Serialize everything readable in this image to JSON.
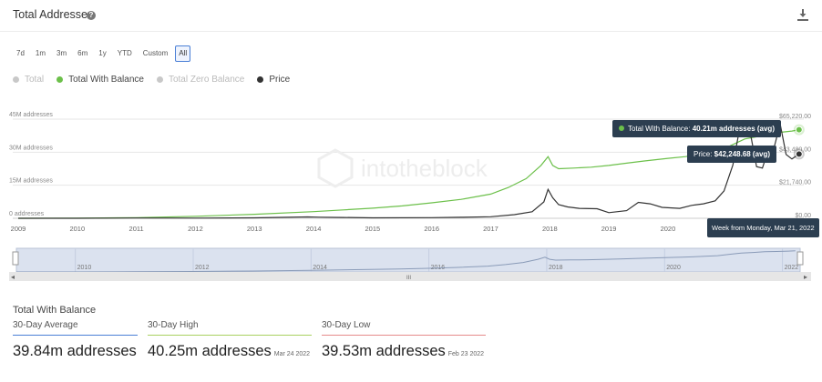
{
  "header": {
    "title": "Total Addresses",
    "help_icon": "?"
  },
  "ranges": [
    "7d",
    "1m",
    "3m",
    "6m",
    "1y",
    "YTD",
    "Custom",
    "All"
  ],
  "active_range": "All",
  "legend": [
    {
      "label": "Total",
      "color": "#c8c8c8",
      "state": "off"
    },
    {
      "label": "Total With Balance",
      "color": "#6cc04a",
      "state": "on"
    },
    {
      "label": "Total Zero Balance",
      "color": "#c8c8c8",
      "state": "off"
    },
    {
      "label": "Price",
      "color": "#333333",
      "state": "on"
    }
  ],
  "watermark": "intotheblock",
  "tooltips": {
    "balance_prefix": "Total With Balance: ",
    "balance_value": "40.21m addresses (avg)",
    "price_prefix": "Price: ",
    "price_value": "$42,248.68 (avg)",
    "week": "Week from Monday, Mar 21, 2022"
  },
  "chart_data": {
    "type": "line",
    "left_ticks": [
      "45M addresses",
      "30M addresses",
      "15M addresses",
      "0 addresses"
    ],
    "right_ticks": [
      "$65,220.00",
      "$43,480.00",
      "$21,740.00",
      "$0.00"
    ],
    "x_ticks": [
      "2009",
      "2010",
      "2011",
      "2012",
      "2013",
      "2014",
      "2015",
      "2016",
      "2017",
      "2018",
      "2019",
      "2020",
      "2021"
    ],
    "ylim_left": [
      0,
      45000000
    ],
    "ylim_right": [
      0,
      65220
    ],
    "xlim": [
      2009.0,
      2022.3
    ],
    "series": [
      {
        "name": "Total With Balance",
        "axis": "left",
        "color": "#6cc04a",
        "x": [
          2009.0,
          2010.0,
          2011.0,
          2012.0,
          2013.0,
          2014.0,
          2014.5,
          2015.0,
          2015.5,
          2016.0,
          2016.5,
          2017.0,
          2017.3,
          2017.6,
          2017.85,
          2017.97,
          2018.05,
          2018.15,
          2018.4,
          2018.7,
          2019.0,
          2019.3,
          2019.6,
          2020.0,
          2020.3,
          2020.6,
          2020.9,
          2021.1,
          2021.3,
          2021.5,
          2021.7,
          2021.9,
          2022.1,
          2022.22
        ],
        "y": [
          0,
          80000,
          300000,
          900000,
          1800000,
          3000000,
          3800000,
          4600000,
          5600000,
          7000000,
          8600000,
          11000000,
          14000000,
          18000000,
          24000000,
          28000000,
          24000000,
          22500000,
          22800000,
          23200000,
          24000000,
          25000000,
          26000000,
          27200000,
          28000000,
          29500000,
          31000000,
          33500000,
          36000000,
          37000000,
          38500000,
          39000000,
          39600000,
          40210000
        ]
      },
      {
        "name": "Price",
        "axis": "right",
        "color": "#333333",
        "x": [
          2009.0,
          2010.0,
          2011.0,
          2012.0,
          2013.0,
          2013.9,
          2014.1,
          2014.5,
          2015.0,
          2016.0,
          2016.5,
          2017.0,
          2017.4,
          2017.7,
          2017.9,
          2017.97,
          2018.05,
          2018.15,
          2018.3,
          2018.5,
          2018.8,
          2019.0,
          2019.3,
          2019.5,
          2019.7,
          2019.9,
          2020.2,
          2020.4,
          2020.6,
          2020.8,
          2020.95,
          2021.1,
          2021.2,
          2021.3,
          2021.4,
          2021.5,
          2021.6,
          2021.7,
          2021.8,
          2021.9,
          2022.0,
          2022.1,
          2022.22
        ],
        "y": [
          0,
          10,
          200,
          100,
          300,
          900,
          700,
          550,
          300,
          400,
          650,
          1000,
          2400,
          4300,
          10800,
          19000,
          13500,
          9000,
          7500,
          6500,
          6300,
          3700,
          5000,
          10500,
          9500,
          7200,
          6500,
          8500,
          9500,
          11500,
          18000,
          35000,
          56000,
          60000,
          55000,
          34000,
          33000,
          45000,
          47000,
          62000,
          42000,
          39000,
          42248
        ]
      }
    ]
  },
  "navigator": {
    "years": [
      "2010",
      "2012",
      "2014",
      "2016",
      "2018",
      "2020",
      "2022"
    ],
    "handle": "III"
  },
  "stats": {
    "title": "Total With Balance",
    "items": [
      {
        "label": "30-Day Average",
        "value": "39.84m addresses",
        "date": "",
        "color": "#4a7fd6"
      },
      {
        "label": "30-Day High",
        "value": "40.25m addresses",
        "date": "Mar 24 2022",
        "color": "#a8d060"
      },
      {
        "label": "30-Day Low",
        "value": "39.53m addresses",
        "date": "Feb 23 2022",
        "color": "#e58a8a"
      }
    ]
  }
}
